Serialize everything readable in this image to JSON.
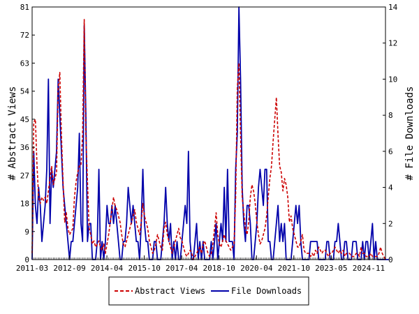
{
  "chart_data": {
    "type": "line",
    "xlabel": "",
    "ylabel_left": "# Abstract Views",
    "ylabel_right": "# File Downloads",
    "ylim_left": [
      0,
      81
    ],
    "ylim_right": [
      0,
      14
    ],
    "yticks_left": [
      0,
      9,
      18,
      27,
      36,
      45,
      54,
      63,
      72,
      81
    ],
    "yticks_right": [
      0,
      2,
      4,
      6,
      8,
      10,
      12,
      14
    ],
    "x_tick_labels": [
      "2011-03",
      "2012-09",
      "2014-04",
      "2015-10",
      "2017-04",
      "2018-10",
      "2020-04",
      "2021-10",
      "2023-05",
      "2024-11"
    ],
    "x_start": "2011-03",
    "grid": false,
    "legend_position": "bottom",
    "series": [
      {
        "name": "Abstract Views",
        "axis": "left",
        "color": "#cc0000",
        "dash": "dashed",
        "values": [
          2,
          44,
          45,
          30,
          20,
          18,
          20,
          19,
          20,
          18,
          22,
          26,
          30,
          24,
          26,
          28,
          55,
          60,
          40,
          25,
          12,
          15,
          10,
          8,
          9,
          10,
          20,
          25,
          28,
          30,
          30,
          40,
          77,
          40,
          25,
          10,
          8,
          5,
          6,
          4,
          5,
          6,
          4,
          3,
          5,
          2,
          5,
          8,
          12,
          16,
          20,
          17,
          16,
          14,
          12,
          8,
          5,
          4,
          6,
          8,
          10,
          12,
          14,
          16,
          12,
          10,
          8,
          12,
          18,
          14,
          12,
          10,
          6,
          4,
          2,
          3,
          5,
          8,
          6,
          4,
          3,
          10,
          12,
          8,
          6,
          4,
          2,
          4,
          6,
          8,
          10,
          7,
          6,
          4,
          2,
          1,
          2,
          3,
          2,
          0,
          1,
          2,
          3,
          4,
          2,
          5,
          6,
          4,
          2,
          1,
          2,
          5,
          10,
          15,
          8,
          5,
          4,
          6,
          8,
          6,
          5,
          4,
          3,
          4,
          5,
          20,
          55,
          63,
          40,
          20,
          15,
          10,
          8,
          12,
          20,
          24,
          22,
          18,
          12,
          8,
          5,
          6,
          8,
          10,
          14,
          20,
          26,
          30,
          38,
          45,
          52,
          40,
          30,
          28,
          22,
          26,
          24,
          20,
          12,
          14,
          10,
          8,
          6,
          4,
          4,
          6,
          8,
          3,
          2,
          2,
          2,
          1,
          2,
          1,
          3,
          2,
          4,
          3,
          2,
          3,
          3,
          2,
          1,
          2,
          2,
          3,
          4,
          3,
          2,
          3,
          2,
          3,
          1,
          2,
          2,
          2,
          1,
          1,
          1,
          2,
          2,
          1,
          4,
          2,
          2,
          1,
          1,
          1,
          2,
          1,
          1,
          1,
          1,
          2,
          4,
          2,
          1,
          0
        ]
      },
      {
        "name": "File Downloads",
        "axis": "right",
        "color": "#0000aa",
        "dash": "solid",
        "values": [
          0,
          6,
          3,
          2,
          4,
          3,
          1,
          2,
          3,
          5,
          10,
          2,
          5,
          4,
          5,
          6,
          10,
          8,
          6,
          4,
          3,
          2,
          1,
          0,
          1,
          1,
          2,
          3,
          4,
          7,
          2,
          1,
          13,
          8,
          1,
          2,
          2,
          0,
          0,
          0,
          1,
          5,
          0,
          1,
          0,
          1,
          3,
          2,
          2,
          3,
          2,
          3,
          2,
          1,
          0,
          0,
          1,
          1,
          2,
          4,
          3,
          2,
          3,
          2,
          1,
          1,
          0,
          2,
          5,
          2,
          1,
          1,
          0,
          0,
          0,
          1,
          1,
          0,
          0,
          0,
          1,
          2,
          4,
          2,
          1,
          2,
          0,
          1,
          0,
          1,
          0,
          0,
          1,
          2,
          3,
          2,
          6,
          1,
          0,
          0,
          1,
          2,
          0,
          1,
          0,
          1,
          0,
          0,
          0,
          0,
          1,
          0,
          1,
          2,
          0,
          1,
          2,
          1,
          4,
          1,
          5,
          1,
          1,
          1,
          0,
          5,
          7,
          14,
          10,
          4,
          2,
          1,
          3,
          3,
          2,
          0,
          0,
          1,
          2,
          4,
          5,
          4,
          3,
          5,
          5,
          1,
          1,
          0,
          0,
          1,
          2,
          3,
          1,
          2,
          1,
          2,
          0,
          0,
          0,
          0,
          1,
          2,
          3,
          2,
          3,
          1,
          0,
          0,
          0,
          0,
          0,
          1,
          1,
          1,
          1,
          1,
          0,
          0,
          0,
          0,
          0,
          1,
          1,
          0,
          0,
          0,
          1,
          1,
          2,
          1,
          0,
          0,
          1,
          1,
          0,
          0,
          0,
          1,
          1,
          1,
          0,
          0,
          0,
          1,
          0,
          1,
          1,
          0,
          1,
          2,
          0,
          1,
          0,
          0,
          0,
          0,
          0,
          0,
          0,
          0
        ]
      }
    ]
  }
}
